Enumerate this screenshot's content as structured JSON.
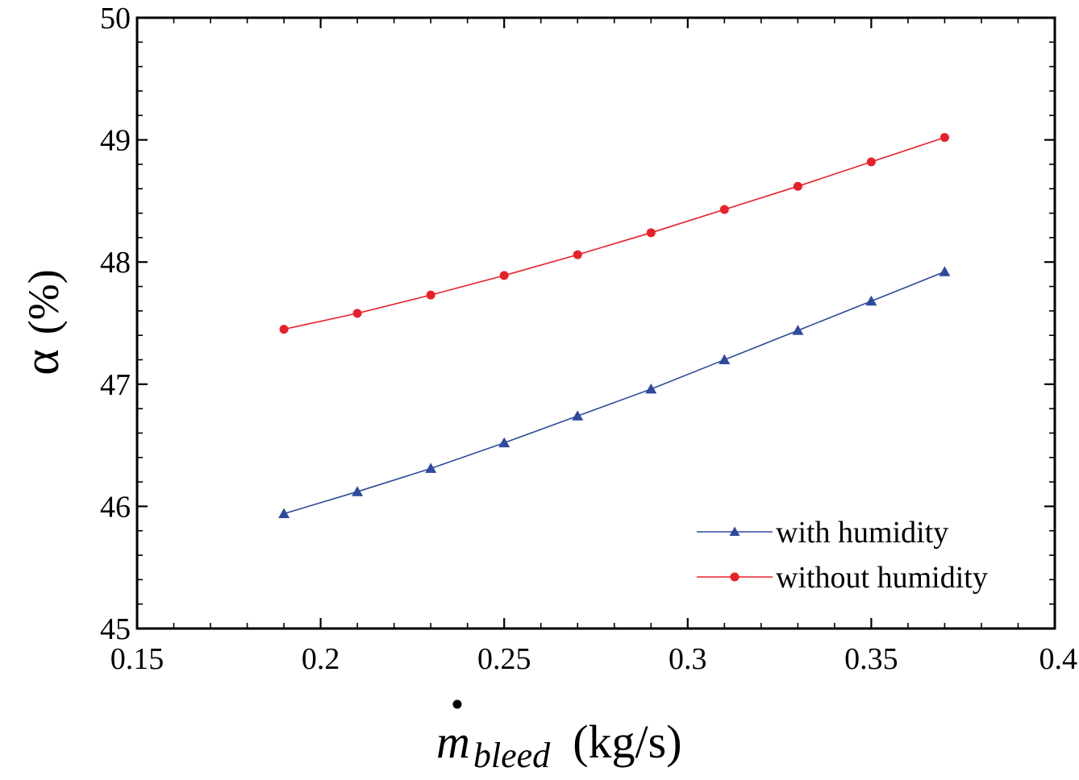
{
  "chart_data": {
    "type": "line",
    "title": "",
    "xlabel": "",
    "ylabel": {
      "symbol": "α",
      "unit": "(%)"
    },
    "xlabel_parts": {
      "symbol": "m",
      "subscript": "bleed",
      "unit": "(kg/s)"
    },
    "xlim": [
      0.15,
      0.4
    ],
    "ylim": [
      45,
      50
    ],
    "xticks": [
      0.15,
      0.2,
      0.25,
      0.3,
      0.35,
      0.4
    ],
    "xtick_labels": [
      "0.15",
      "0.2",
      "0.25",
      "0.3",
      "0.35",
      "0.4"
    ],
    "yticks": [
      45,
      46,
      47,
      48,
      49,
      50
    ],
    "ytick_labels": [
      "45",
      "46",
      "47",
      "48",
      "49",
      "50"
    ],
    "grid": false,
    "legend_position": "bottom-right",
    "series": [
      {
        "name": "with humidity",
        "color": "#2e4a9e",
        "marker": "triangle",
        "x": [
          0.19,
          0.21,
          0.23,
          0.25,
          0.27,
          0.29,
          0.31,
          0.33,
          0.35,
          0.37
        ],
        "y": [
          45.94,
          46.12,
          46.31,
          46.52,
          46.74,
          46.96,
          47.2,
          47.44,
          47.68,
          47.92
        ]
      },
      {
        "name": "without humidity",
        "color": "#e8202a",
        "marker": "circle",
        "x": [
          0.19,
          0.21,
          0.23,
          0.25,
          0.27,
          0.29,
          0.31,
          0.33,
          0.35,
          0.37
        ],
        "y": [
          47.45,
          47.58,
          47.73,
          47.89,
          48.06,
          48.24,
          48.43,
          48.62,
          48.82,
          49.02
        ]
      }
    ]
  }
}
